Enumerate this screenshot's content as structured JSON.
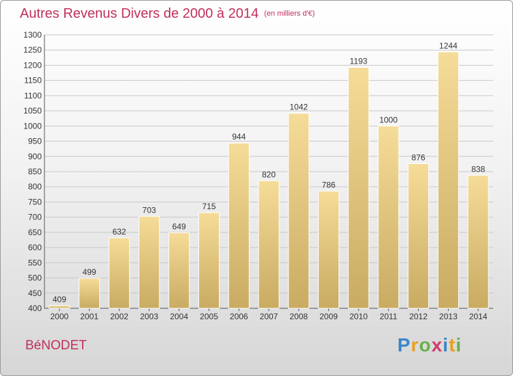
{
  "header": {
    "title": "Autres Revenus Divers de 2000 à 2014",
    "subtitle": "(en milliers d'€)"
  },
  "footer": {
    "commune": "BéNODET",
    "logo_letters": [
      "P",
      "r",
      "o",
      "x",
      "i",
      "t",
      "i"
    ],
    "logo_colors": [
      "#3a86c8",
      "#e8a020",
      "#6ab04c",
      "#d03a6a",
      "#3a86c8",
      "#e8a020",
      "#6ab04c"
    ]
  },
  "colors": {
    "bar_top": "#f5dc98",
    "bar_bottom": "#c9ab62",
    "title": "#c0305a"
  },
  "chart_data": {
    "type": "bar",
    "categories": [
      "2000",
      "2001",
      "2002",
      "2003",
      "2004",
      "2005",
      "2006",
      "2007",
      "2008",
      "2009",
      "2010",
      "2011",
      "2012",
      "2013",
      "2014"
    ],
    "values": [
      409,
      499,
      632,
      703,
      649,
      715,
      944,
      820,
      1042,
      786,
      1193,
      1000,
      876,
      1244,
      838
    ],
    "value_labels": [
      "409",
      "499",
      "632",
      "703",
      "649",
      "715",
      "944",
      "820",
      "1042",
      "786",
      "1193",
      "1000",
      "876",
      "1244",
      "838"
    ],
    "yticks": [
      400,
      450,
      500,
      550,
      600,
      650,
      700,
      750,
      800,
      850,
      900,
      950,
      1000,
      1050,
      1100,
      1150,
      1200,
      1250,
      1300
    ],
    "ytick_labels": [
      "400",
      "450",
      "500",
      "550",
      "600",
      "650",
      "700",
      "750",
      "800",
      "850",
      "900",
      "950",
      "1000",
      "1050",
      "1100",
      "1150",
      "1200",
      "1250",
      "1300"
    ],
    "ylim": [
      400,
      1300
    ],
    "grid": true,
    "xlabel": "",
    "ylabel": ""
  }
}
